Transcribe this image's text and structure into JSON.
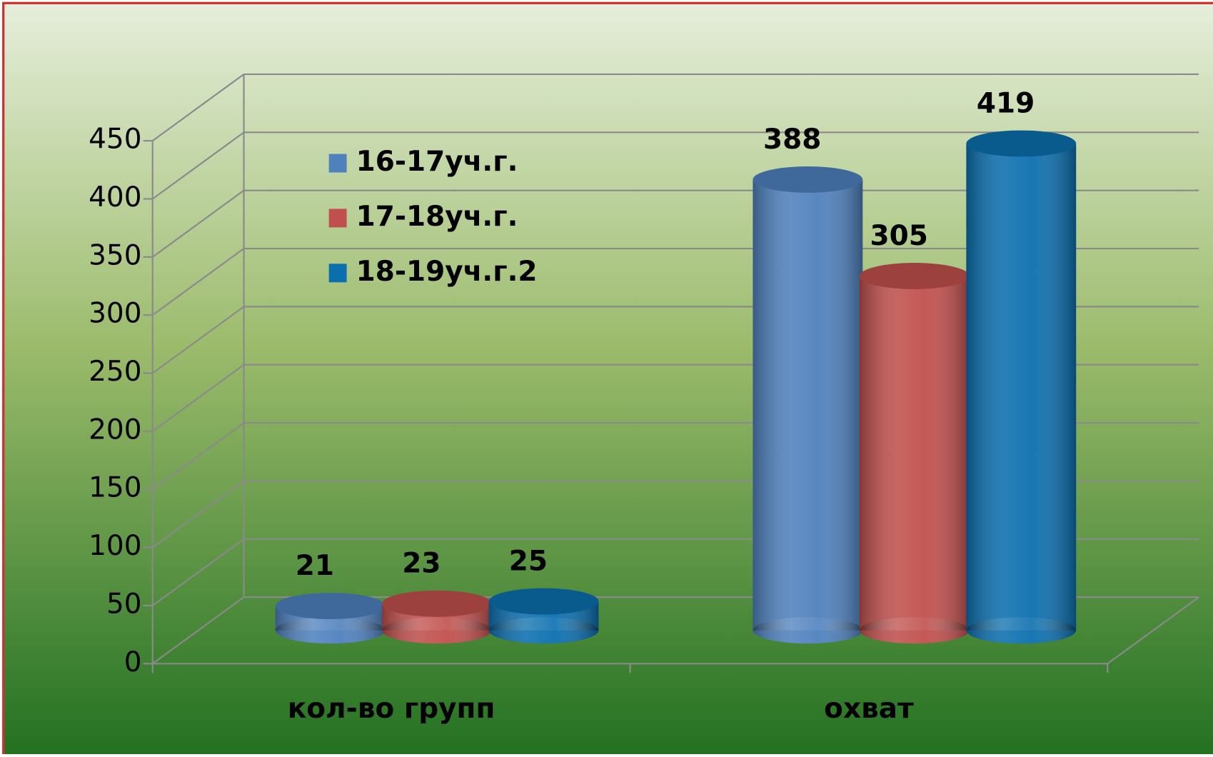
{
  "chart_data": {
    "type": "bar3d",
    "categories": [
      "кол-во групп",
      "охват"
    ],
    "series": [
      {
        "name": "16-17уч.г.",
        "color": "#4f81bd",
        "values": [
          21,
          388
        ]
      },
      {
        "name": "17-18уч.г.",
        "color": "#c0504d",
        "values": [
          23,
          305
        ]
      },
      {
        "name": "18-19уч.г.2",
        "color": "#0b6fae",
        "values": [
          25,
          419
        ]
      }
    ],
    "ylim": [
      0,
      450
    ],
    "yticks": [
      0,
      50,
      100,
      150,
      200,
      250,
      300,
      350,
      400,
      450
    ],
    "grid": true,
    "legend": "upper-left"
  }
}
